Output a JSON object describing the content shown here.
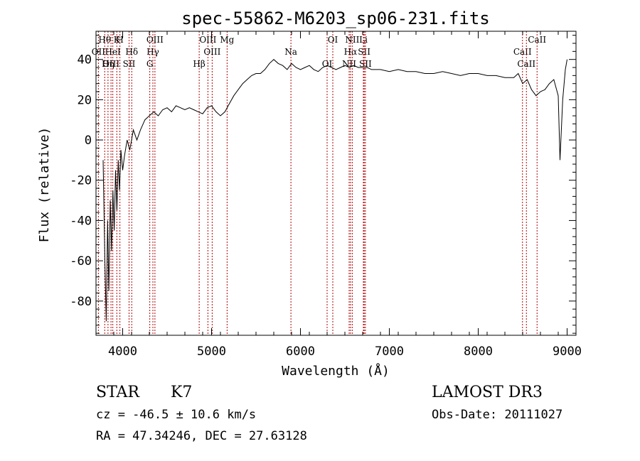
{
  "chart_data": {
    "type": "line",
    "title": "spec-55862-M6203_sp06-231.fits",
    "xlabel": "Wavelength (Å)",
    "ylabel": "Flux (relative)",
    "xlim": [
      3700,
      9100
    ],
    "ylim": [
      -97,
      54
    ],
    "xticks": [
      4000,
      5000,
      6000,
      7000,
      8000,
      9000
    ],
    "yticks": [
      -80,
      -60,
      -40,
      -20,
      0,
      20,
      40
    ],
    "series": [
      {
        "name": "flux",
        "x": [
          3780,
          3800,
          3815,
          3830,
          3845,
          3860,
          3875,
          3890,
          3905,
          3920,
          3935,
          3950,
          3965,
          3980,
          4000,
          4020,
          4050,
          4080,
          4120,
          4160,
          4200,
          4250,
          4300,
          4350,
          4400,
          4450,
          4500,
          4550,
          4600,
          4650,
          4700,
          4750,
          4800,
          4850,
          4900,
          4950,
          5000,
          5050,
          5100,
          5150,
          5200,
          5250,
          5300,
          5350,
          5400,
          5450,
          5500,
          5550,
          5600,
          5650,
          5700,
          5750,
          5800,
          5850,
          5900,
          5950,
          6000,
          6050,
          6100,
          6150,
          6200,
          6250,
          6300,
          6350,
          6400,
          6450,
          6500,
          6550,
          6600,
          6650,
          6700,
          6750,
          6800,
          6900,
          7000,
          7100,
          7200,
          7300,
          7400,
          7500,
          7600,
          7700,
          7800,
          7900,
          8000,
          8100,
          8200,
          8300,
          8400,
          8450,
          8500,
          8550,
          8600,
          8650,
          8700,
          8750,
          8800,
          8850,
          8900,
          8920,
          8950,
          8980,
          9000
        ],
        "values": [
          -10,
          -60,
          -90,
          -40,
          -75,
          -30,
          -55,
          -25,
          -45,
          -15,
          -35,
          -10,
          -25,
          -5,
          -15,
          -8,
          0,
          -5,
          5,
          0,
          5,
          10,
          12,
          14,
          12,
          15,
          16,
          14,
          17,
          16,
          15,
          16,
          15,
          14,
          13,
          16,
          17,
          14,
          12,
          14,
          18,
          22,
          25,
          28,
          30,
          32,
          33,
          33,
          35,
          38,
          40,
          38,
          37,
          35,
          38,
          36,
          35,
          36,
          37,
          35,
          34,
          36,
          37,
          36,
          35,
          36,
          37,
          36,
          37,
          36,
          36,
          36,
          35,
          35,
          34,
          35,
          34,
          34,
          33,
          33,
          34,
          33,
          32,
          33,
          33,
          32,
          32,
          31,
          31,
          33,
          28,
          30,
          25,
          22,
          24,
          25,
          28,
          30,
          22,
          -10,
          20,
          35,
          40
        ]
      }
    ],
    "spectral_lines": [
      {
        "label": "Hθ",
        "x": 3798
      },
      {
        "label": "OII",
        "x": 3727
      },
      {
        "label": "OIII",
        "x": 3869
      },
      {
        "label": "K",
        "x": 3934
      },
      {
        "label": "HeI",
        "x": 3889
      },
      {
        "label": "Hη",
        "x": 3835
      },
      {
        "label": "H",
        "x": 3969
      },
      {
        "label": "Hδ",
        "x": 4102
      },
      {
        "label": "SII",
        "x": 4072
      },
      {
        "label": "OIII",
        "x": 4363
      },
      {
        "label": "Hγ",
        "x": 4340
      },
      {
        "label": "G",
        "x": 4305
      },
      {
        "label": "OIII",
        "x": 4959
      },
      {
        "label": "OIII",
        "x": 5007
      },
      {
        "label": "Hβ",
        "x": 4861
      },
      {
        "label": "Mg",
        "x": 5175
      },
      {
        "label": "Na",
        "x": 5893
      },
      {
        "label": "OI",
        "x": 6300
      },
      {
        "label": "OI",
        "x": 6364
      },
      {
        "label": "Hα",
        "x": 6563
      },
      {
        "label": "NII",
        "x": 6548
      },
      {
        "label": "NII",
        "x": 6583
      },
      {
        "label": "SII",
        "x": 6717
      },
      {
        "label": "SII",
        "x": 6731
      },
      {
        "label": "Li",
        "x": 6708
      },
      {
        "label": "CaII",
        "x": 8498
      },
      {
        "label": "CaII",
        "x": 8542
      },
      {
        "label": "CaII",
        "x": 8662
      }
    ]
  },
  "info": {
    "object_class": "STAR",
    "subclass": "K7",
    "survey": "LAMOST DR3",
    "redshift_line": "cz = -46.5 ± 10.6 km/s",
    "obs_date": "Obs-Date: 20111027",
    "coords": "RA =  47.34246, DEC =  27.63128"
  },
  "colors": {
    "line_marker": "#b00000",
    "spectrum": "#000000"
  }
}
